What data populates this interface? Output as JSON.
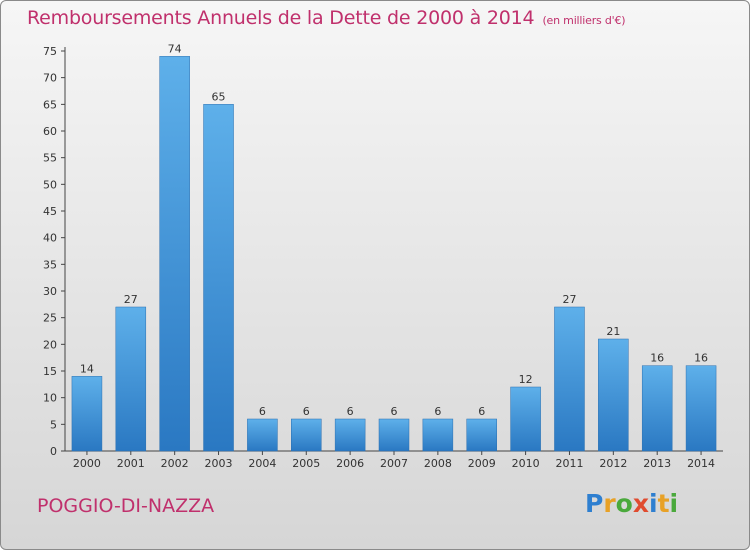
{
  "chart_data": {
    "type": "bar",
    "title": "Remboursements Annuels de la Dette de 2000 à 2014",
    "unit_note": "(en milliers d'€)",
    "categories": [
      "2000",
      "2001",
      "2002",
      "2003",
      "2004",
      "2005",
      "2006",
      "2007",
      "2008",
      "2009",
      "2010",
      "2011",
      "2012",
      "2013",
      "2014"
    ],
    "values": [
      14,
      27,
      74,
      65,
      6,
      6,
      6,
      6,
      6,
      6,
      12,
      27,
      21,
      16,
      16
    ],
    "ylim": [
      0,
      75
    ],
    "yticks": [
      0,
      5,
      10,
      15,
      20,
      25,
      30,
      35,
      40,
      45,
      50,
      55,
      60,
      65,
      70,
      75
    ],
    "grid": false,
    "legend": "none",
    "bar_color": "#3f93d8"
  },
  "footer": {
    "commune": "POGGIO-DI-NAZZA",
    "logo_text": [
      "P",
      "r",
      "o",
      "x",
      "i",
      "t",
      "i"
    ],
    "logo_colors": [
      "#2e7fd0",
      "#e8a126",
      "#4aa93c",
      "#e04b2f",
      "#2e7fd0",
      "#e8a126",
      "#4aa93c"
    ]
  }
}
